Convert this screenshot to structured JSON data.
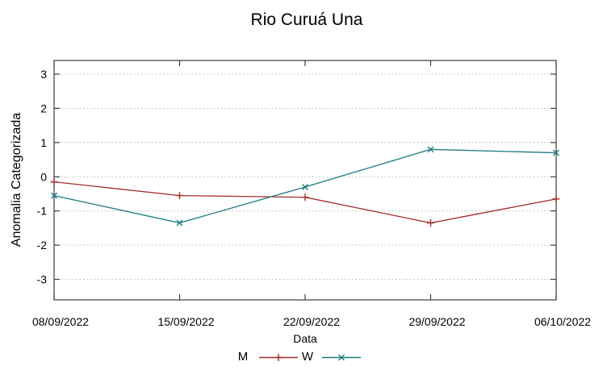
{
  "chart_data": {
    "type": "line",
    "title": "Rio Curuá Una",
    "xlabel": "Data",
    "ylabel": "Anomalia Categorizada",
    "categories": [
      "08/09/2022",
      "15/09/2022",
      "22/09/2022",
      "29/09/2022",
      "06/10/2022"
    ],
    "series": [
      {
        "name": "M",
        "marker": "plus",
        "color": "#a22c2a",
        "values": [
          -0.15,
          -0.55,
          -0.6,
          -1.35,
          -0.65
        ]
      },
      {
        "name": "W",
        "marker": "cross",
        "color": "#1e7a80",
        "values": [
          -0.55,
          -1.35,
          -0.3,
          0.8,
          0.7
        ]
      }
    ],
    "yticks": [
      -3,
      -2,
      -1,
      0,
      1,
      2,
      3
    ],
    "ylim": [
      -3.6,
      3.4
    ],
    "grid": true,
    "grid_style": "dotted",
    "legend_position": "bottom-center",
    "background": "#ffffff",
    "grid_color": "#b5b5b5",
    "axis_color": "#3c3c3c",
    "text_color": "#000000"
  }
}
